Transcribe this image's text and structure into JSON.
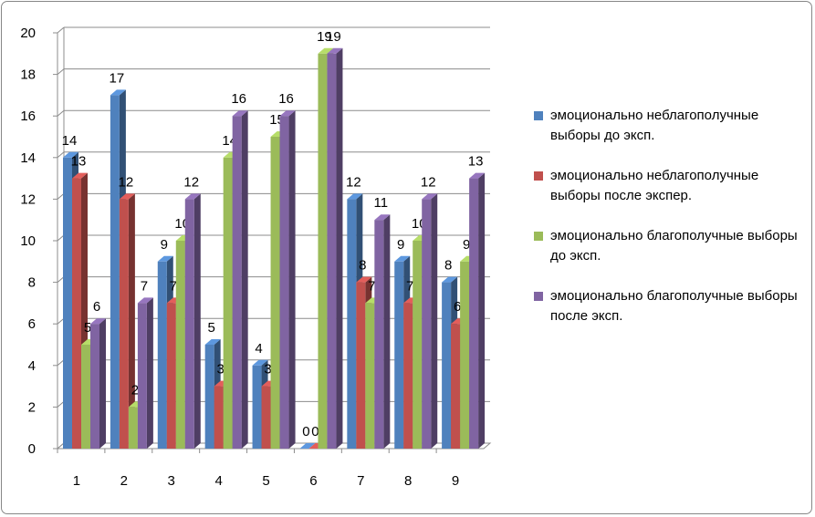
{
  "chart_data": {
    "type": "bar",
    "categories": [
      "1",
      "2",
      "3",
      "4",
      "5",
      "6",
      "7",
      "8",
      "9"
    ],
    "ylim": [
      0,
      20
    ],
    "yticks": [
      0,
      2,
      4,
      6,
      8,
      10,
      12,
      14,
      16,
      18,
      20
    ],
    "grid": true,
    "legend_position": "right",
    "series": [
      {
        "name": "эмоционально неблагополучные выборы до эксп.",
        "color": "#4f81bd",
        "values": [
          14,
          17,
          9,
          5,
          4,
          0,
          12,
          9,
          8
        ]
      },
      {
        "name": "эмоционально неблагополучные выборы после экспер.",
        "color": "#c0504d",
        "values": [
          13,
          12,
          7,
          3,
          3,
          0,
          8,
          7,
          6
        ]
      },
      {
        "name": "эмоционально благополучные выборы до эксп.",
        "color": "#9bbb59",
        "values": [
          5,
          2,
          10,
          14,
          15,
          19,
          7,
          10,
          9
        ]
      },
      {
        "name": "эмоционально благополучные выборы после эксп.",
        "color": "#8064a2",
        "values": [
          6,
          7,
          12,
          16,
          16,
          19,
          11,
          12,
          13
        ]
      }
    ]
  }
}
